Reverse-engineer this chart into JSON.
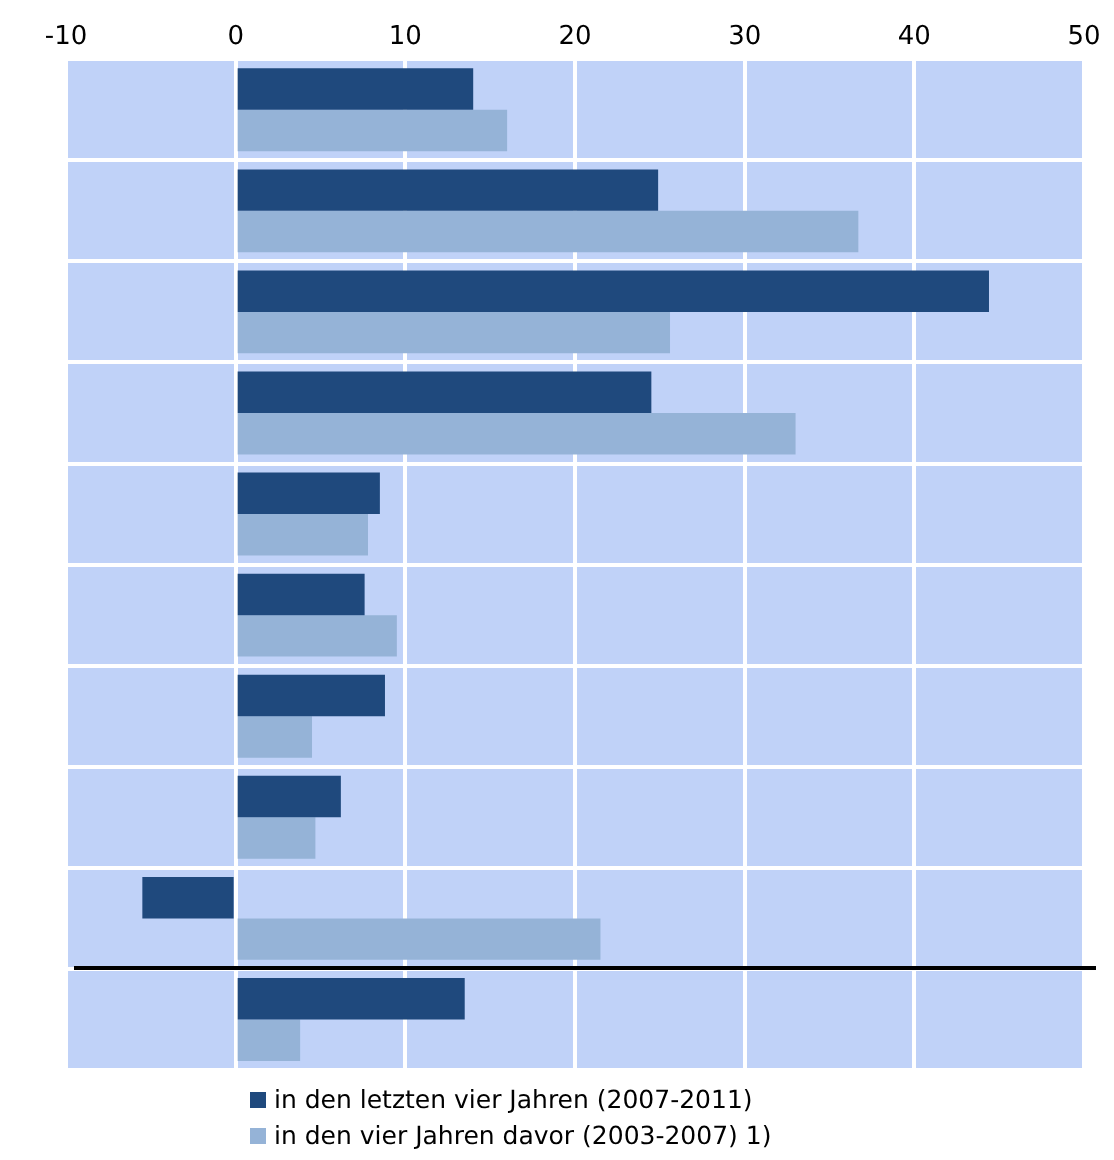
{
  "chart_data": {
    "type": "bar",
    "orientation": "horizontal",
    "categories": [
      null,
      null,
      null,
      null,
      null,
      null,
      null,
      null,
      null,
      null
    ],
    "series": [
      {
        "name": "in den letzten vier Jahren (2007-2011)",
        "color": "#1f497d",
        "values": [
          14.0,
          24.9,
          44.4,
          24.5,
          8.5,
          7.6,
          8.8,
          6.2,
          -5.5,
          13.5
        ]
      },
      {
        "name": "in den vier Jahren davor (2003-2007) 1)",
        "color": "#95b3d7",
        "values": [
          16.0,
          36.7,
          25.6,
          33.0,
          7.8,
          9.5,
          4.5,
          4.7,
          21.5,
          3.8
        ]
      }
    ],
    "xlim": [
      -10,
      50
    ],
    "xticks": [
      -10,
      0,
      10,
      20,
      30,
      40,
      50
    ],
    "grid": true,
    "legend": "bottom"
  }
}
